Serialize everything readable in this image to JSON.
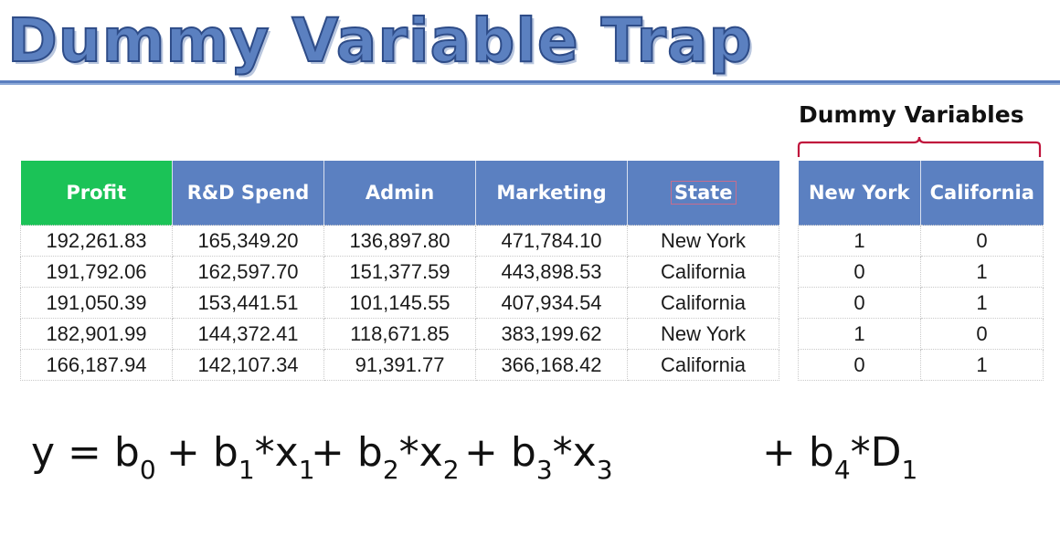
{
  "title": "Dummy Variable Trap",
  "dummy_variables_label": "Dummy Variables",
  "main_table": {
    "headers": [
      "Profit",
      "R&D Spend",
      "Admin",
      "Marketing",
      "State"
    ],
    "rows": [
      [
        "192,261.83",
        "165,349.20",
        "136,897.80",
        "471,784.10",
        "New York"
      ],
      [
        "191,792.06",
        "162,597.70",
        "151,377.59",
        "443,898.53",
        "California"
      ],
      [
        "191,050.39",
        "153,441.51",
        "101,145.55",
        "407,934.54",
        "California"
      ],
      [
        "182,901.99",
        "144,372.41",
        "118,671.85",
        "383,199.62",
        "New York"
      ],
      [
        "166,187.94",
        "142,107.34",
        "91,391.77",
        "366,168.42",
        "California"
      ]
    ]
  },
  "dummy_table": {
    "headers": [
      "New York",
      "California"
    ],
    "rows": [
      [
        "1",
        "0"
      ],
      [
        "0",
        "1"
      ],
      [
        "0",
        "1"
      ],
      [
        "1",
        "0"
      ],
      [
        "0",
        "1"
      ]
    ]
  },
  "equation": {
    "lhs": "y",
    "equals": "=",
    "plus": "+",
    "times": "*",
    "b": "b",
    "x": "x",
    "D": "D",
    "sub0": "0",
    "sub1": "1",
    "sub2": "2",
    "sub3": "3",
    "sub4": "4"
  },
  "colors": {
    "title": "#5b80c0",
    "header_blue": "#5b80c1",
    "header_green": "#1bc357",
    "bracket": "#c0143c"
  }
}
